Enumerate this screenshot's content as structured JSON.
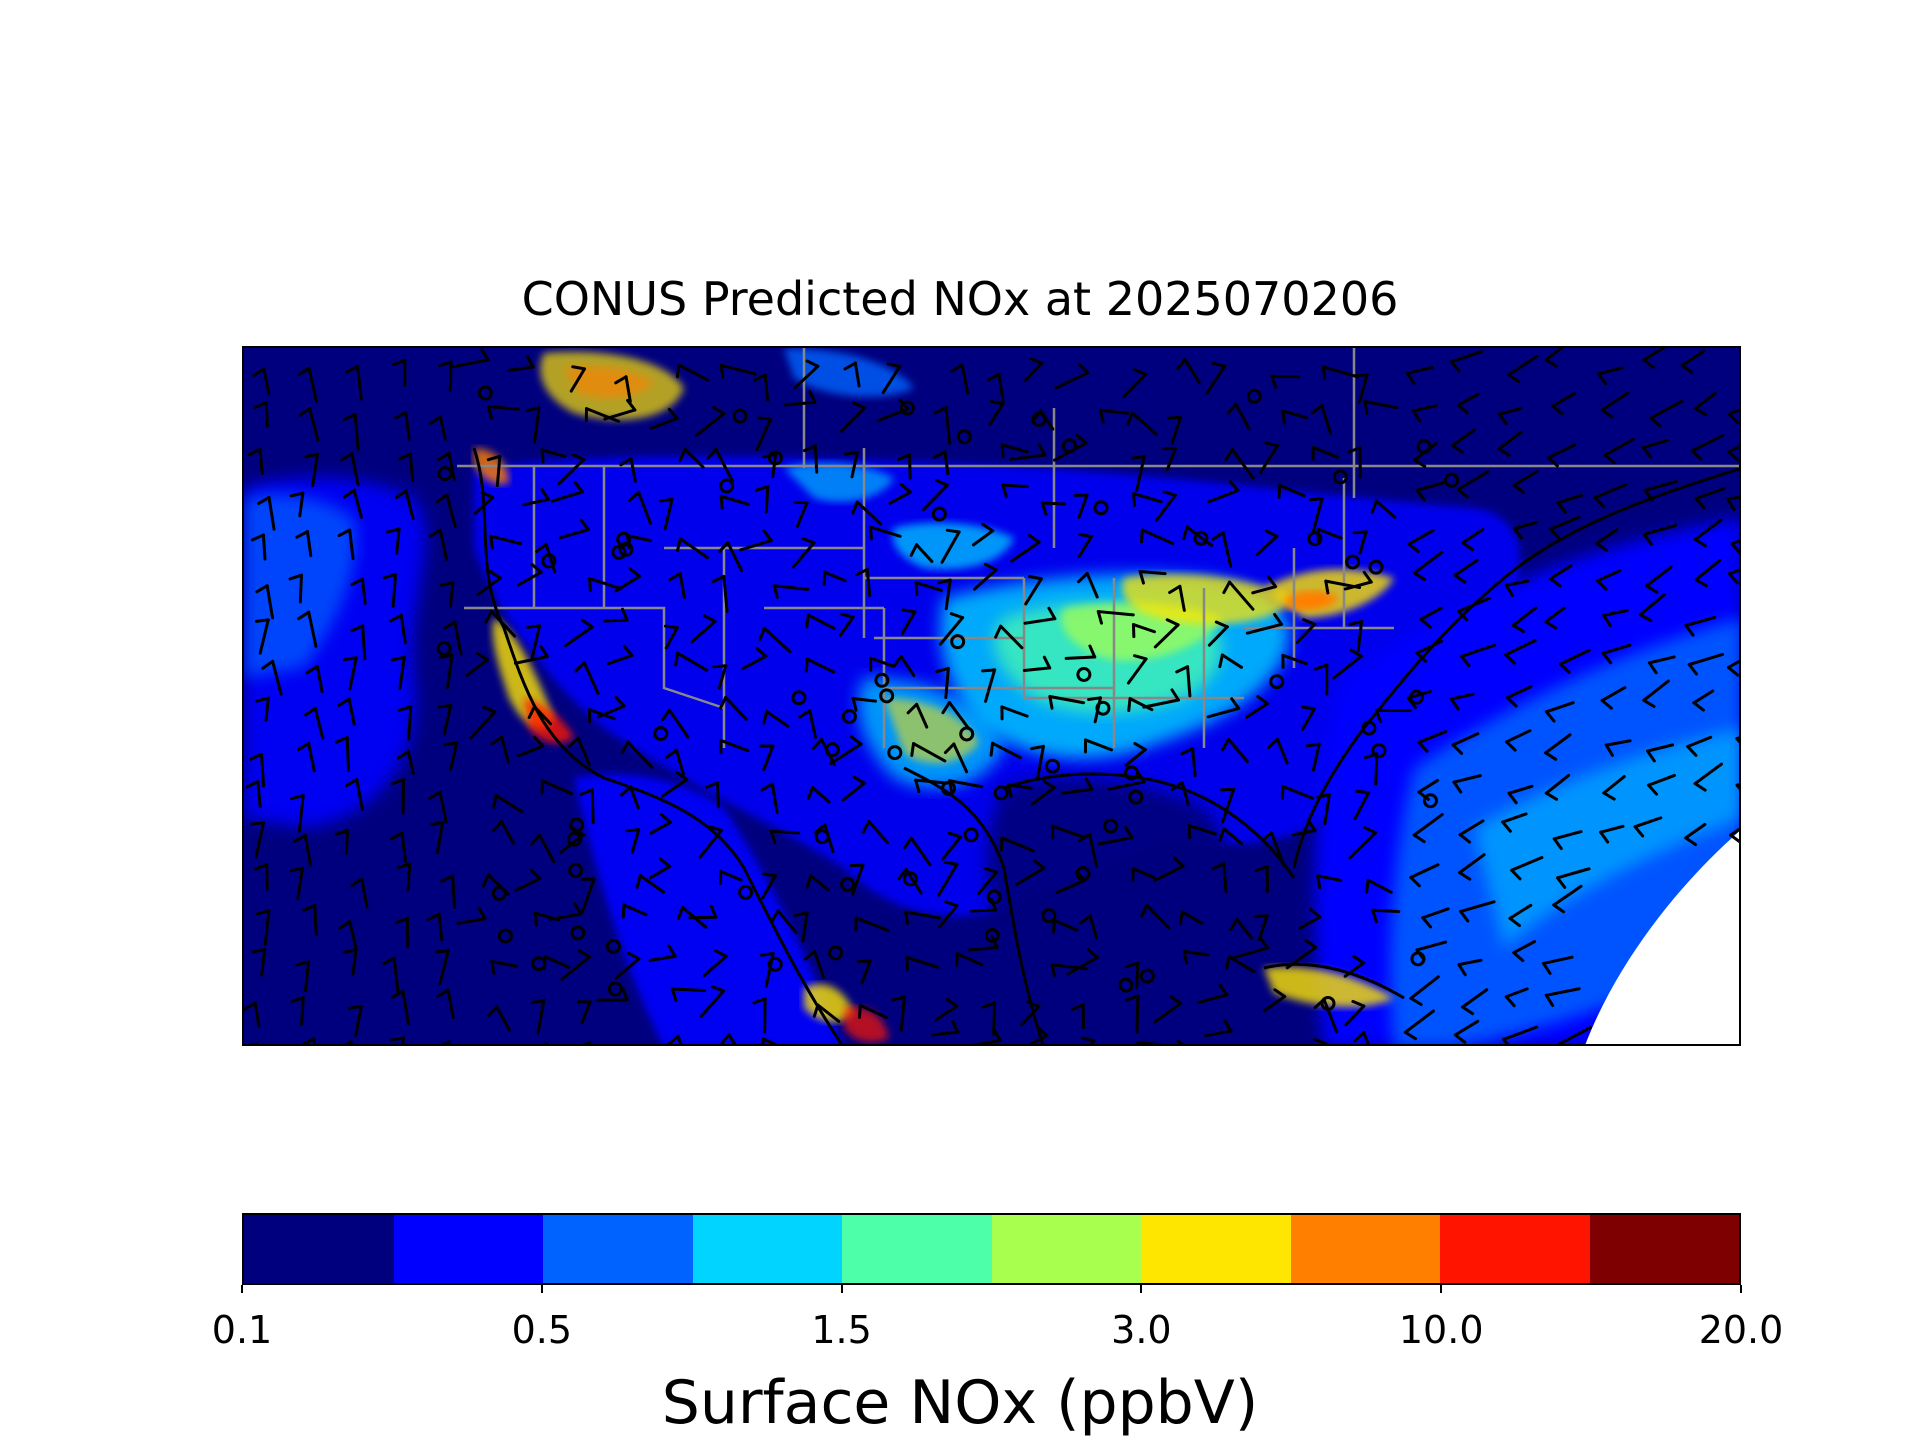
{
  "title": "CONUS Predicted NOx at 2025070206",
  "colorbar": {
    "label": "Surface NOx (ppbV)",
    "colors": [
      "#00007f",
      "#0000ff",
      "#0063ff",
      "#00d4ff",
      "#4effa9",
      "#a9ff4e",
      "#ffe600",
      "#ff7f00",
      "#ff1400",
      "#7f0000"
    ],
    "ticks": [
      "0.1",
      "0.5",
      "1.5",
      "3.0",
      "10.0",
      "20.0"
    ],
    "tick_segment_index": [
      0,
      2,
      4,
      6,
      8,
      10
    ]
  },
  "map": {
    "field": "Surface NOx",
    "units": "ppbV",
    "overlays": [
      "wind-barbs",
      "state-borders",
      "coastlines",
      "station-markers"
    ]
  }
}
